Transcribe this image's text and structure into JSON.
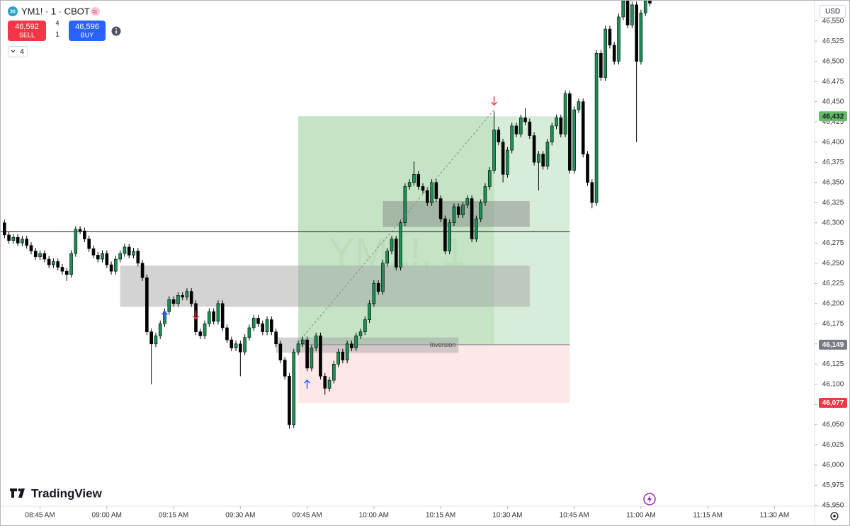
{
  "header": {
    "badge": "30",
    "symbol": "YM1! · 1 · CBOT",
    "sell_price": "46,592",
    "sell_label": "SELL",
    "spread_top": "4",
    "spread_bottom": "1",
    "buy_price": "46,596",
    "buy_label": "BUY",
    "indicator_count": "4",
    "currency": "USD",
    "logo": "TradingView"
  },
  "chart_data": {
    "type": "candlestick",
    "watermark": "YM1!, 1",
    "up_color": "#1b8f54",
    "down_color": "#000000",
    "xlim": [
      "08:36",
      "11:39"
    ],
    "ylim": [
      45949,
      46576
    ],
    "xticks": [
      {
        "value": "08:45",
        "label": "08:45 AM"
      },
      {
        "value": "09:00",
        "label": "09:00 AM"
      },
      {
        "value": "09:15",
        "label": "09:15 AM"
      },
      {
        "value": "09:30",
        "label": "09:30 AM"
      },
      {
        "value": "09:45",
        "label": "09:45 AM"
      },
      {
        "value": "10:00",
        "label": "10:00 AM"
      },
      {
        "value": "10:15",
        "label": "10:15 AM"
      },
      {
        "value": "10:30",
        "label": "10:30 AM"
      },
      {
        "value": "10:45",
        "label": "10:45 AM"
      },
      {
        "value": "11:00",
        "label": "11:00 AM"
      },
      {
        "value": "11:15",
        "label": "11:15 AM"
      },
      {
        "value": "11:30",
        "label": "11:30 AM"
      }
    ],
    "yticks": [
      {
        "value": 46550,
        "label": "46,550"
      },
      {
        "value": 46525,
        "label": "46,525"
      },
      {
        "value": 46500,
        "label": "46,500"
      },
      {
        "value": 46475,
        "label": "46,475"
      },
      {
        "value": 46450,
        "label": "46,450"
      },
      {
        "value": 46425,
        "label": "46,425"
      },
      {
        "value": 46400,
        "label": "46,400"
      },
      {
        "value": 46375,
        "label": "46,375"
      },
      {
        "value": 46350,
        "label": "46,350"
      },
      {
        "value": 46325,
        "label": "46,325"
      },
      {
        "value": 46300,
        "label": "46,300"
      },
      {
        "value": 46275,
        "label": "46,275"
      },
      {
        "value": 46250,
        "label": "46,250"
      },
      {
        "value": 46225,
        "label": "46,225"
      },
      {
        "value": 46200,
        "label": "46,200"
      },
      {
        "value": 46175,
        "label": "46,175"
      },
      {
        "value": 46150,
        "label": "46,150"
      },
      {
        "value": 46125,
        "label": "46,125"
      },
      {
        "value": 46100,
        "label": "46,100"
      },
      {
        "value": 46075,
        "label": "46,075"
      },
      {
        "value": 46050,
        "label": "46,050"
      },
      {
        "value": 46025,
        "label": "46,025"
      },
      {
        "value": 46000,
        "label": "46,000"
      },
      {
        "value": 45975,
        "label": "45,975"
      },
      {
        "value": 45950,
        "label": "45,950"
      }
    ],
    "x": [
      "08:37",
      "08:38",
      "08:39",
      "08:40",
      "08:41",
      "08:42",
      "08:43",
      "08:44",
      "08:45",
      "08:46",
      "08:47",
      "08:48",
      "08:49",
      "08:50",
      "08:51",
      "08:52",
      "08:53",
      "08:54",
      "08:55",
      "08:56",
      "08:57",
      "08:58",
      "08:59",
      "09:00",
      "09:01",
      "09:02",
      "09:03",
      "09:04",
      "09:05",
      "09:06",
      "09:07",
      "09:08",
      "09:09",
      "09:10",
      "09:11",
      "09:12",
      "09:13",
      "09:14",
      "09:15",
      "09:16",
      "09:17",
      "09:18",
      "09:19",
      "09:20",
      "09:21",
      "09:22",
      "09:23",
      "09:24",
      "09:25",
      "09:26",
      "09:27",
      "09:28",
      "09:29",
      "09:30",
      "09:31",
      "09:32",
      "09:33",
      "09:34",
      "09:35",
      "09:36",
      "09:37",
      "09:38",
      "09:39",
      "09:40",
      "09:41",
      "09:42",
      "09:43",
      "09:44",
      "09:45",
      "09:46",
      "09:47",
      "09:48",
      "09:49",
      "09:50",
      "09:51",
      "09:52",
      "09:53",
      "09:54",
      "09:55",
      "09:56",
      "09:57",
      "09:58",
      "09:59",
      "10:00",
      "10:01",
      "10:02",
      "10:03",
      "10:04",
      "10:05",
      "10:06",
      "10:07",
      "10:08",
      "10:09",
      "10:10",
      "10:11",
      "10:12",
      "10:13",
      "10:14",
      "10:15",
      "10:16",
      "10:17",
      "10:18",
      "10:19",
      "10:20",
      "10:21",
      "10:22",
      "10:23",
      "10:24",
      "10:25",
      "10:26",
      "10:27",
      "10:28",
      "10:29",
      "10:30",
      "10:31",
      "10:32",
      "10:33",
      "10:34",
      "10:35",
      "10:36",
      "10:37",
      "10:38",
      "10:39",
      "10:40",
      "10:41",
      "10:42",
      "10:43",
      "10:44",
      "10:45",
      "10:46",
      "10:47",
      "10:48",
      "10:49",
      "10:50",
      "10:51",
      "10:52",
      "10:53",
      "10:54",
      "10:55",
      "10:56",
      "10:57",
      "10:58",
      "10:59",
      "11:00",
      "11:01",
      "11:02"
    ],
    "open": [
      46300,
      46285,
      46278,
      46282,
      46275,
      46280,
      46272,
      46265,
      46258,
      46262,
      46255,
      46248,
      46252,
      46245,
      46240,
      46236,
      46262,
      46292,
      46290,
      46280,
      46268,
      46260,
      46255,
      46262,
      46248,
      46240,
      46255,
      46262,
      46270,
      46260,
      46265,
      46250,
      46232,
      46165,
      46150,
      46160,
      46175,
      46190,
      46205,
      46200,
      46210,
      46208,
      46215,
      46200,
      46165,
      46160,
      46175,
      46190,
      46178,
      46200,
      46170,
      46155,
      46145,
      46150,
      46140,
      46158,
      46170,
      46182,
      46175,
      46165,
      46180,
      46165,
      46150,
      46130,
      46110,
      46050,
      46140,
      46150,
      46155,
      46120,
      46145,
      46160,
      46110,
      46095,
      46105,
      46125,
      46140,
      46130,
      46150,
      46145,
      46160,
      46165,
      46180,
      46200,
      46225,
      46215,
      46250,
      46265,
      46280,
      46245,
      46300,
      46345,
      46350,
      46360,
      46345,
      46340,
      46325,
      46350,
      46330,
      46305,
      46265,
      46300,
      46320,
      46310,
      46322,
      46330,
      46280,
      46305,
      46325,
      46345,
      46365,
      46415,
      46400,
      46360,
      46390,
      46420,
      46410,
      46430,
      46425,
      46408,
      46375,
      46385,
      46370,
      46400,
      46420,
      46430,
      46410,
      46460,
      46365,
      46440,
      46450,
      46385,
      46350,
      46325,
      46510,
      46480,
      46540,
      46520,
      46500,
      46555,
      46575,
      46545,
      46570,
      46500,
      46560,
      46575
    ],
    "high": [
      46304,
      46289,
      46286,
      46286,
      46284,
      46284,
      46276,
      46269,
      46266,
      46266,
      46259,
      46256,
      46256,
      46249,
      46244,
      46266,
      46296,
      46296,
      46294,
      46284,
      46272,
      46264,
      46266,
      46266,
      46252,
      46259,
      46266,
      46274,
      46274,
      46269,
      46269,
      46254,
      46236,
      46169,
      46164,
      46179,
      46194,
      46209,
      46209,
      46214,
      46214,
      46219,
      46219,
      46204,
      46169,
      46179,
      46194,
      46194,
      46204,
      46204,
      46174,
      46159,
      46154,
      46154,
      46162,
      46174,
      46186,
      46186,
      46179,
      46184,
      46184,
      46169,
      46154,
      46134,
      46114,
      46144,
      46154,
      46159,
      46159,
      46149,
      46164,
      46164,
      46114,
      46109,
      46129,
      46144,
      46144,
      46154,
      46154,
      46164,
      46169,
      46184,
      46204,
      46229,
      46229,
      46254,
      46269,
      46284,
      46284,
      46304,
      46349,
      46354,
      46376,
      46364,
      46349,
      46344,
      46354,
      46354,
      46334,
      46309,
      46304,
      46324,
      46324,
      46326,
      46334,
      46334,
      46309,
      46329,
      46349,
      46369,
      46438,
      46419,
      46404,
      46394,
      46424,
      46424,
      46434,
      46442,
      46429,
      46412,
      46389,
      46389,
      46404,
      46424,
      46434,
      46434,
      46464,
      46464,
      46444,
      46454,
      46454,
      46389,
      46354,
      46514,
      46514,
      46544,
      46544,
      46524,
      46559,
      46579,
      46579,
      46574,
      46574,
      46564,
      46579,
      46579
    ],
    "low": [
      46281,
      46274,
      46274,
      46271,
      46271,
      46268,
      46261,
      46254,
      46254,
      46251,
      46244,
      46244,
      46241,
      46236,
      46228,
      46232,
      46258,
      46286,
      46276,
      46264,
      46256,
      46251,
      46251,
      46244,
      46236,
      46236,
      46251,
      46258,
      46256,
      46256,
      46246,
      46228,
      46161,
      46100,
      46146,
      46156,
      46171,
      46186,
      46196,
      46196,
      46204,
      46204,
      46196,
      46161,
      46156,
      46156,
      46171,
      46174,
      46174,
      46166,
      46151,
      46141,
      46141,
      46110,
      46136,
      46154,
      46166,
      46171,
      46161,
      46161,
      46161,
      46146,
      46126,
      46106,
      46045,
      46046,
      46136,
      46146,
      46116,
      46116,
      46141,
      46106,
      46087,
      46091,
      46101,
      46121,
      46126,
      46126,
      46141,
      46141,
      46156,
      46161,
      46176,
      46196,
      46211,
      46211,
      46246,
      46261,
      46241,
      46241,
      46296,
      46341,
      46346,
      46341,
      46336,
      46321,
      46321,
      46326,
      46301,
      46261,
      46261,
      46296,
      46306,
      46306,
      46318,
      46276,
      46276,
      46301,
      46321,
      46341,
      46361,
      46396,
      46350,
      46356,
      46386,
      46406,
      46406,
      46421,
      46404,
      46371,
      46340,
      46366,
      46366,
      46396,
      46416,
      46406,
      46406,
      46361,
      46361,
      46436,
      46381,
      46346,
      46318,
      46321,
      46476,
      46476,
      46516,
      46496,
      46496,
      46551,
      46541,
      46541,
      46400,
      46496,
      46556,
      46568
    ],
    "close": [
      46285,
      46278,
      46282,
      46275,
      46280,
      46272,
      46265,
      46258,
      46262,
      46255,
      46248,
      46252,
      46245,
      46240,
      46236,
      46262,
      46292,
      46290,
      46280,
      46268,
      46260,
      46255,
      46262,
      46248,
      46240,
      46255,
      46262,
      46270,
      46260,
      46265,
      46250,
      46232,
      46165,
      46150,
      46160,
      46175,
      46190,
      46205,
      46200,
      46210,
      46208,
      46215,
      46200,
      46165,
      46160,
      46175,
      46190,
      46178,
      46200,
      46170,
      46155,
      46145,
      46150,
      46140,
      46158,
      46170,
      46182,
      46175,
      46165,
      46180,
      46165,
      46150,
      46130,
      46110,
      46050,
      46140,
      46150,
      46155,
      46120,
      46145,
      46160,
      46110,
      46095,
      46105,
      46125,
      46140,
      46130,
      46150,
      46145,
      46160,
      46165,
      46180,
      46200,
      46225,
      46215,
      46250,
      46265,
      46280,
      46245,
      46300,
      46345,
      46350,
      46360,
      46345,
      46340,
      46325,
      46350,
      46330,
      46305,
      46265,
      46300,
      46320,
      46310,
      46322,
      46330,
      46280,
      46305,
      46325,
      46345,
      46365,
      46415,
      46400,
      46360,
      46390,
      46420,
      46410,
      46430,
      46425,
      46408,
      46375,
      46385,
      46370,
      46400,
      46420,
      46430,
      46410,
      46460,
      46365,
      46440,
      46450,
      46385,
      46350,
      46325,
      46510,
      46480,
      46540,
      46520,
      46500,
      46555,
      46575,
      46545,
      46570,
      46500,
      46560,
      46575,
      46572
    ],
    "zones": [
      {
        "x": [
          "09:03",
          "10:35"
        ],
        "y": [
          46196,
          46247
        ],
        "color": "#9e9e9e"
      },
      {
        "x": [
          "10:02",
          "10:35"
        ],
        "y": [
          46295,
          46327
        ],
        "color": "#7e7e7e"
      },
      {
        "x": [
          "09:38",
          "10:19"
        ],
        "y": [
          46139,
          46158
        ],
        "color": "#9e9e9e",
        "label": "Inversion"
      }
    ],
    "position": {
      "x": [
        "09:43",
        "10:44"
      ],
      "close_x": "10:27",
      "target": {
        "value": 46432,
        "label": "46,432",
        "color": "#66bb6a"
      },
      "entry": {
        "value": 46149,
        "label": "46,149",
        "color": "#787b86"
      },
      "stop": {
        "value": 46077,
        "label": "46,077",
        "color": "#f23645"
      }
    },
    "hline": {
      "value": 46289,
      "end": "10:44"
    },
    "trend": {
      "x": [
        "09:43",
        "10:27"
      ],
      "y": [
        46152,
        46440
      ]
    },
    "buy_signals": [
      {
        "x": "09:13",
        "y": 46190
      },
      {
        "x": "09:45",
        "y": 46105
      }
    ],
    "sell_signals": [
      {
        "x": "09:20",
        "y": 46181
      },
      {
        "x": "10:27",
        "y": 46446
      }
    ]
  }
}
